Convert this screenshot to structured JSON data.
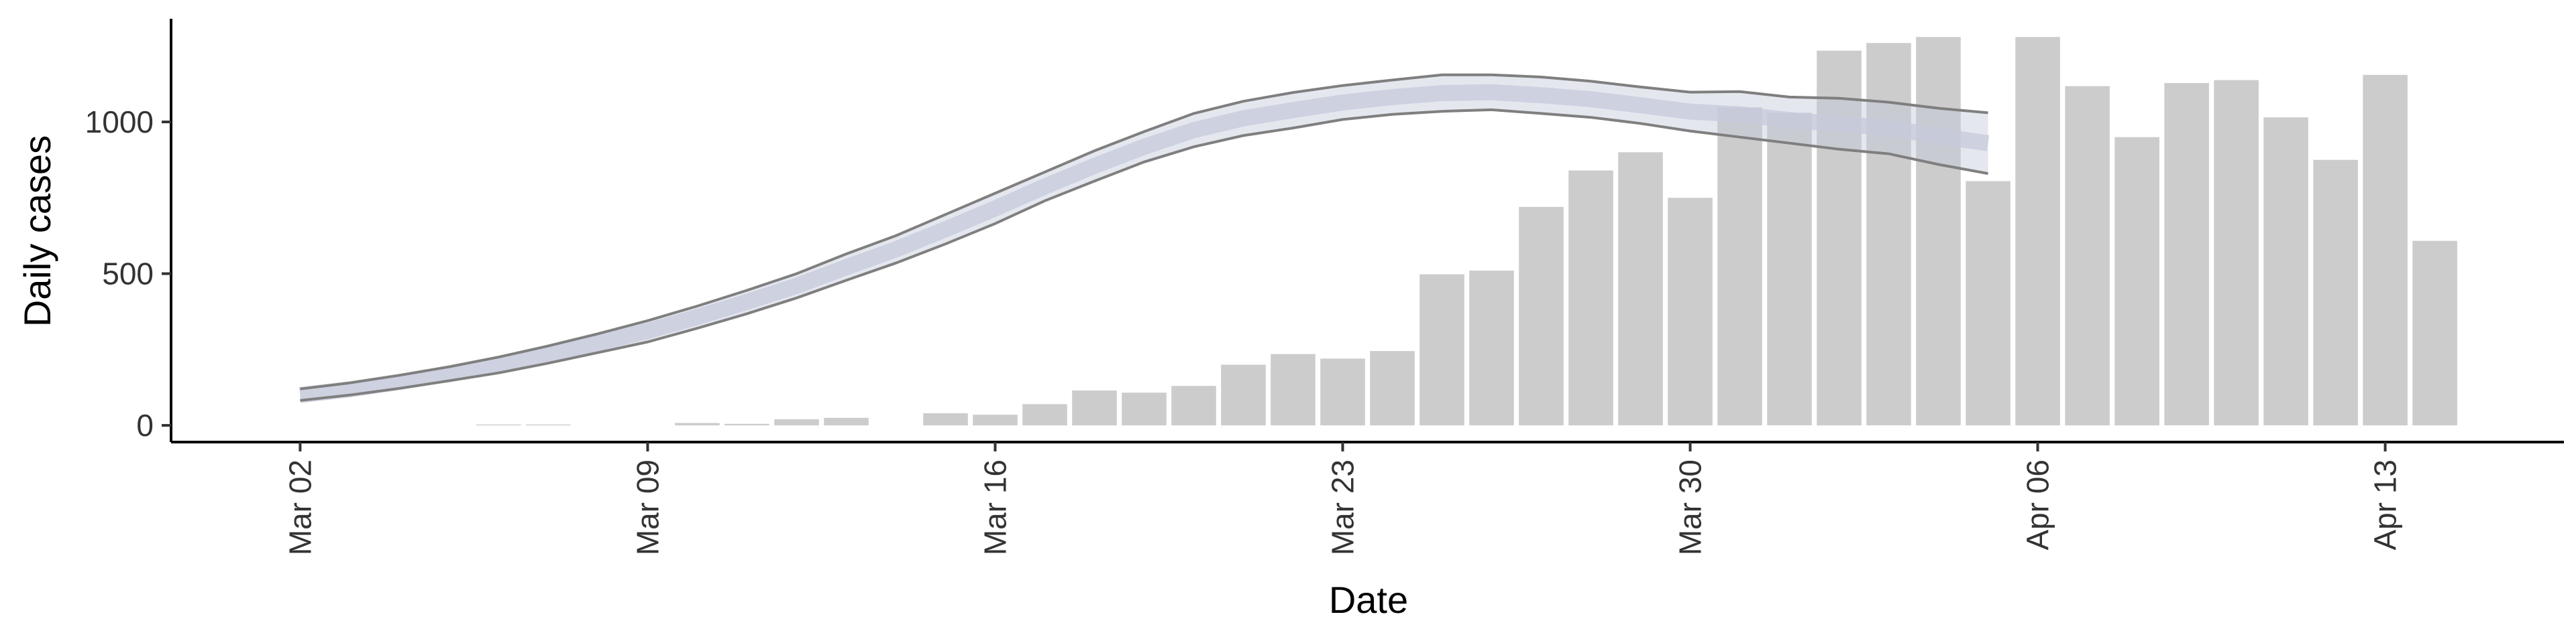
{
  "chart_data": {
    "type": "bar",
    "xlabel": "Date",
    "ylabel": "Daily cases",
    "x_ticks": [
      {
        "day": 0,
        "label": "Mar 02"
      },
      {
        "day": 7,
        "label": "Mar 09"
      },
      {
        "day": 14,
        "label": "Mar 16"
      },
      {
        "day": 21,
        "label": "Mar 23"
      },
      {
        "day": 28,
        "label": "Mar 30"
      },
      {
        "day": 35,
        "label": "Apr 06"
      },
      {
        "day": 42,
        "label": "Apr 13"
      }
    ],
    "y_ticks": [
      0,
      500,
      1000
    ],
    "ylim": [
      -55,
      1340
    ],
    "xlim": [
      -2.6,
      45.6
    ],
    "bars": {
      "series_color": "#cccccc",
      "days": [
        1,
        2,
        3,
        4,
        5,
        6,
        7,
        8,
        9,
        10,
        11,
        12,
        13,
        14,
        15,
        16,
        17,
        18,
        19,
        20,
        21,
        22,
        23,
        24,
        25,
        26,
        27,
        28,
        29,
        30,
        31,
        32,
        33,
        34,
        35,
        36,
        37,
        38,
        39,
        40,
        41,
        42,
        43
      ],
      "values": [
        0,
        0,
        0,
        3,
        3,
        0,
        0,
        8,
        5,
        20,
        25,
        0,
        40,
        35,
        70,
        115,
        108,
        130,
        200,
        235,
        220,
        245,
        498,
        510,
        720,
        840,
        900,
        750,
        1048,
        1030,
        1235,
        1260,
        1280,
        805,
        1280,
        1118,
        950,
        1128,
        1138,
        1015,
        875,
        1155,
        608
      ]
    },
    "fit": {
      "line_color": "#7f7f7f",
      "band_color": "#c5cadb",
      "days": [
        0,
        1,
        2,
        3,
        4,
        5,
        6,
        7,
        8,
        9,
        10,
        11,
        12,
        13,
        14,
        15,
        16,
        17,
        18,
        19,
        20,
        21,
        22,
        23,
        24,
        25,
        26,
        27,
        28,
        29,
        30,
        31,
        32,
        33,
        34
      ],
      "upper": [
        120,
        140,
        165,
        193,
        225,
        262,
        302,
        345,
        393,
        445,
        500,
        565,
        625,
        695,
        765,
        835,
        905,
        968,
        1028,
        1068,
        1097,
        1120,
        1138,
        1155,
        1155,
        1148,
        1134,
        1115,
        1098,
        1100,
        1082,
        1078,
        1065,
        1045,
        1030
      ],
      "lower": [
        82,
        100,
        122,
        147,
        173,
        205,
        240,
        275,
        320,
        368,
        420,
        478,
        535,
        598,
        665,
        740,
        805,
        868,
        918,
        955,
        980,
        1008,
        1025,
        1035,
        1040,
        1028,
        1015,
        995,
        970,
        950,
        930,
        910,
        895,
        860,
        830
      ],
      "median": [
        100,
        119,
        143,
        170,
        199,
        233,
        271,
        311,
        357,
        407,
        460,
        521,
        580,
        646,
        715,
        787,
        855,
        918,
        973,
        1012,
        1039,
        1064,
        1082,
        1095,
        1098,
        1088,
        1075,
        1055,
        1034,
        1025,
        1006,
        994,
        980,
        953,
        930
      ]
    }
  }
}
